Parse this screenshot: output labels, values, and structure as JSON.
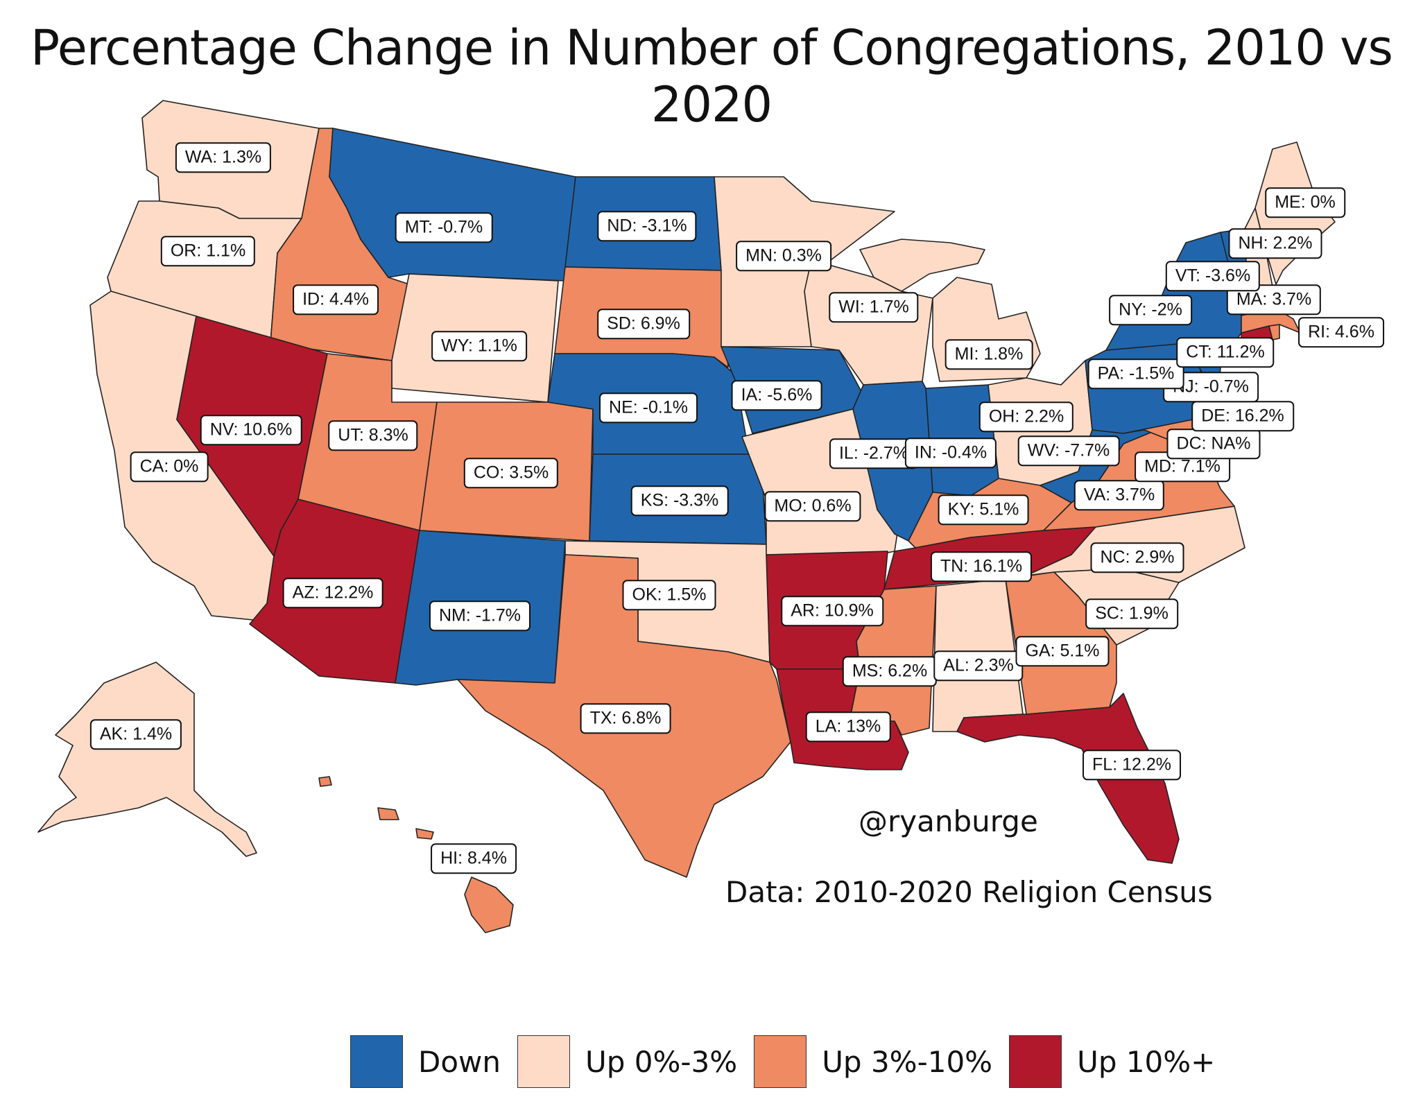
{
  "title": "Percentage Change in Number of Congregations, 2010 vs 2020",
  "credit": "@ryanburge",
  "source": "Data: 2010-2020 Religion Census",
  "colors": {
    "down": "#2166ac",
    "up_0_3": "#fddbc7",
    "up_3_10": "#ef8a62",
    "up_10_plus": "#b2182b"
  },
  "legend": [
    {
      "key": "down",
      "label": "Down"
    },
    {
      "key": "up_0_3",
      "label": "Up 0%-3%"
    },
    {
      "key": "up_3_10",
      "label": "Up 3%-10%"
    },
    {
      "key": "up_10_plus",
      "label": "Up 10%+"
    }
  ],
  "states": {
    "WA": {
      "label": "WA: 1.3%",
      "category": "up_0_3"
    },
    "OR": {
      "label": "OR: 1.1%",
      "category": "up_0_3"
    },
    "CA": {
      "label": "CA: 0%",
      "category": "up_0_3"
    },
    "ID": {
      "label": "ID: 4.4%",
      "category": "up_3_10"
    },
    "NV": {
      "label": "NV: 10.6%",
      "category": "up_10_plus"
    },
    "MT": {
      "label": "MT: -0.7%",
      "category": "down"
    },
    "WY": {
      "label": "WY: 1.1%",
      "category": "up_0_3"
    },
    "UT": {
      "label": "UT: 8.3%",
      "category": "up_3_10"
    },
    "AZ": {
      "label": "AZ: 12.2%",
      "category": "up_10_plus"
    },
    "CO": {
      "label": "CO: 3.5%",
      "category": "up_3_10"
    },
    "NM": {
      "label": "NM: -1.7%",
      "category": "down"
    },
    "ND": {
      "label": "ND: -3.1%",
      "category": "down"
    },
    "SD": {
      "label": "SD: 6.9%",
      "category": "up_3_10"
    },
    "NE": {
      "label": "NE: -0.1%",
      "category": "down"
    },
    "KS": {
      "label": "KS: -3.3%",
      "category": "down"
    },
    "OK": {
      "label": "OK: 1.5%",
      "category": "up_0_3"
    },
    "TX": {
      "label": "TX: 6.8%",
      "category": "up_3_10"
    },
    "MN": {
      "label": "MN: 0.3%",
      "category": "up_0_3"
    },
    "IA": {
      "label": "IA: -5.6%",
      "category": "down"
    },
    "MO": {
      "label": "MO: 0.6%",
      "category": "up_0_3"
    },
    "AR": {
      "label": "AR: 10.9%",
      "category": "up_10_plus"
    },
    "LA": {
      "label": "LA: 13%",
      "category": "up_10_plus"
    },
    "WI": {
      "label": "WI: 1.7%",
      "category": "up_0_3"
    },
    "IL": {
      "label": "IL: -2.7%",
      "category": "down"
    },
    "MI": {
      "label": "MI: 1.8%",
      "category": "up_0_3"
    },
    "IN": {
      "label": "IN: -0.4%",
      "category": "down"
    },
    "OH": {
      "label": "OH: 2.2%",
      "category": "up_0_3"
    },
    "KY": {
      "label": "KY: 5.1%",
      "category": "up_3_10"
    },
    "TN": {
      "label": "TN: 16.1%",
      "category": "up_10_plus"
    },
    "MS": {
      "label": "MS: 6.2%",
      "category": "up_3_10"
    },
    "AL": {
      "label": "AL: 2.3%",
      "category": "up_0_3"
    },
    "GA": {
      "label": "GA: 5.1%",
      "category": "up_3_10"
    },
    "FL": {
      "label": "FL: 12.2%",
      "category": "up_10_plus"
    },
    "SC": {
      "label": "SC: 1.9%",
      "category": "up_0_3"
    },
    "NC": {
      "label": "NC: 2.9%",
      "category": "up_0_3"
    },
    "VA": {
      "label": "VA: 3.7%",
      "category": "up_3_10"
    },
    "WV": {
      "label": "WV: -7.7%",
      "category": "down"
    },
    "MD": {
      "label": "MD: 7.1%",
      "category": "up_3_10"
    },
    "DC": {
      "label": "DC: NA%",
      "category": "up_3_10"
    },
    "DE": {
      "label": "DE: 16.2%",
      "category": "up_10_plus"
    },
    "NJ": {
      "label": "NJ: -0.7%",
      "category": "down"
    },
    "PA": {
      "label": "PA: -1.5%",
      "category": "down"
    },
    "NY": {
      "label": "NY: -2%",
      "category": "down"
    },
    "CT": {
      "label": "CT: 11.2%",
      "category": "up_10_plus"
    },
    "RI": {
      "label": "RI: 4.6%",
      "category": "up_3_10"
    },
    "MA": {
      "label": "MA: 3.7%",
      "category": "up_3_10"
    },
    "VT": {
      "label": "VT: -3.6%",
      "category": "down"
    },
    "NH": {
      "label": "NH: 2.2%",
      "category": "up_0_3"
    },
    "ME": {
      "label": "ME: 0%",
      "category": "up_0_3"
    },
    "AK": {
      "label": "AK: 1.4%",
      "category": "up_0_3"
    },
    "HI": {
      "label": "HI: 8.4%",
      "category": "up_3_10"
    }
  }
}
